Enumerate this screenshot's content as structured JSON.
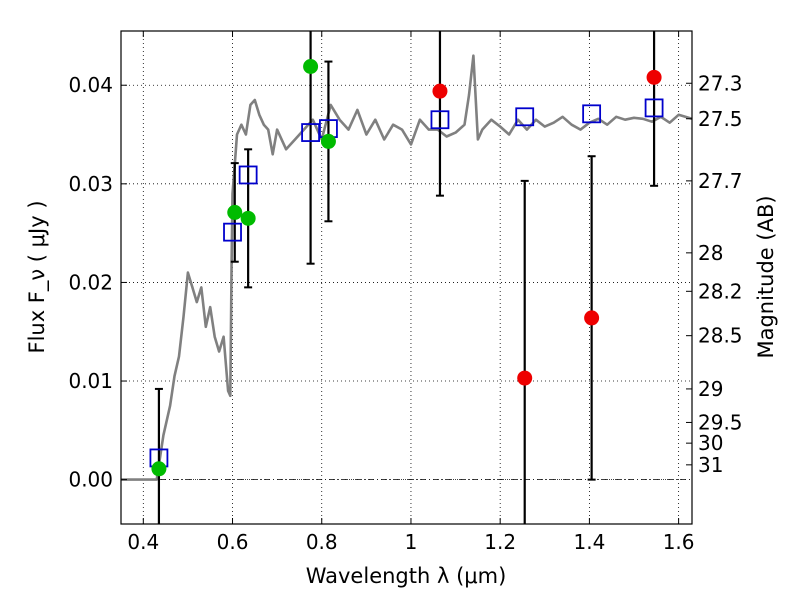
{
  "chart_data": {
    "type": "scatter",
    "xlabel": "Wavelength  λ (μm)",
    "ylabel": "Flux  F_ν  ( μJy )",
    "ylabel_right": "Magnitude (AB)",
    "xlim": [
      0.35,
      1.63
    ],
    "ylim": [
      -0.0045,
      0.0455
    ],
    "x_ticks": [
      {
        "value": 0.4,
        "label": "0.4"
      },
      {
        "value": 0.6,
        "label": "0.6"
      },
      {
        "value": 0.8,
        "label": "0.8"
      },
      {
        "value": 1.0,
        "label": "1"
      },
      {
        "value": 1.2,
        "label": "1.2"
      },
      {
        "value": 1.4,
        "label": "1.4"
      },
      {
        "value": 1.6,
        "label": "1.6"
      }
    ],
    "y_ticks": [
      {
        "value": 0.0,
        "label": "0.00"
      },
      {
        "value": 0.01,
        "label": "0.01"
      },
      {
        "value": 0.02,
        "label": "0.02"
      },
      {
        "value": 0.03,
        "label": "0.03"
      },
      {
        "value": 0.04,
        "label": "0.04"
      }
    ],
    "right_ticks": [
      {
        "flux": 0.0402,
        "label": "27.3"
      },
      {
        "flux": 0.0366,
        "label": "27.5"
      },
      {
        "flux": 0.0303,
        "label": "27.7"
      },
      {
        "flux": 0.023,
        "label": "28"
      },
      {
        "flux": 0.0191,
        "label": "28.2"
      },
      {
        "flux": 0.0146,
        "label": "28.5"
      },
      {
        "flux": 0.0092,
        "label": "29"
      },
      {
        "flux": 0.0058,
        "label": "29.5"
      },
      {
        "flux": 0.0037,
        "label": "30"
      },
      {
        "flux": 0.0015,
        "label": "31"
      }
    ],
    "grid": true,
    "colors": {
      "template": "#808080",
      "model": "#0000cc",
      "detections_green": "#00bb00",
      "detections_red": "#ee0000",
      "errorbar": "#000000"
    },
    "series": [
      {
        "kind": "line",
        "style": "template",
        "x": [
          0.35,
          0.43,
          0.445,
          0.46,
          0.47,
          0.48,
          0.49,
          0.5,
          0.51,
          0.52,
          0.53,
          0.54,
          0.55,
          0.56,
          0.57,
          0.58,
          0.59,
          0.595,
          0.598,
          0.6,
          0.605,
          0.61,
          0.615,
          0.62,
          0.63,
          0.64,
          0.65,
          0.66,
          0.67,
          0.68,
          0.69,
          0.7,
          0.72,
          0.74,
          0.76,
          0.78,
          0.8,
          0.82,
          0.84,
          0.86,
          0.88,
          0.9,
          0.92,
          0.94,
          0.96,
          0.98,
          1.0,
          1.02,
          1.04,
          1.06,
          1.08,
          1.1,
          1.12,
          1.13,
          1.14,
          1.15,
          1.16,
          1.18,
          1.2,
          1.22,
          1.24,
          1.26,
          1.28,
          1.3,
          1.32,
          1.34,
          1.36,
          1.38,
          1.4,
          1.42,
          1.44,
          1.46,
          1.48,
          1.5,
          1.52,
          1.54,
          1.56,
          1.58,
          1.6,
          1.63
        ],
        "y": [
          0.0,
          0.0,
          0.0045,
          0.0075,
          0.0105,
          0.0125,
          0.0165,
          0.021,
          0.0195,
          0.018,
          0.0195,
          0.0155,
          0.0175,
          0.0145,
          0.013,
          0.0145,
          0.009,
          0.0085,
          0.022,
          0.029,
          0.032,
          0.035,
          0.0355,
          0.036,
          0.035,
          0.038,
          0.0385,
          0.037,
          0.036,
          0.0355,
          0.033,
          0.0355,
          0.0335,
          0.0345,
          0.0355,
          0.0365,
          0.0345,
          0.038,
          0.0365,
          0.0355,
          0.0375,
          0.035,
          0.0365,
          0.0345,
          0.036,
          0.0355,
          0.034,
          0.0365,
          0.0355,
          0.0355,
          0.0348,
          0.0352,
          0.036,
          0.039,
          0.043,
          0.0345,
          0.0355,
          0.0365,
          0.0358,
          0.035,
          0.0365,
          0.0355,
          0.0365,
          0.0358,
          0.0362,
          0.0368,
          0.036,
          0.0355,
          0.0362,
          0.0366,
          0.036,
          0.0368,
          0.0365,
          0.0367,
          0.0366,
          0.0363,
          0.0368,
          0.0362,
          0.037,
          0.0366
        ]
      },
      {
        "kind": "scatter",
        "style": "model",
        "marker": "open-square",
        "x": [
          0.435,
          0.6,
          0.635,
          0.775,
          0.815,
          1.065,
          1.255,
          1.405,
          1.545
        ],
        "y": [
          0.0022,
          0.0251,
          0.0309,
          0.0352,
          0.0356,
          0.0365,
          0.0368,
          0.0371,
          0.0377
        ]
      },
      {
        "kind": "scatter",
        "style": "detections_green",
        "marker": "filled-circle",
        "x": [
          0.435,
          0.605,
          0.635,
          0.775,
          0.815
        ],
        "y": [
          0.0011,
          0.0271,
          0.0265,
          0.0419,
          0.0343
        ],
        "err": [
          0.0081,
          0.005,
          0.007,
          0.02,
          0.0081
        ]
      },
      {
        "kind": "scatter",
        "style": "detections_red",
        "marker": "filled-circle",
        "x": [
          1.065,
          1.255,
          1.405,
          1.545
        ],
        "y": [
          0.0394,
          0.0103,
          0.0164,
          0.0408
        ],
        "err": [
          0.0106,
          0.02,
          0.0164,
          0.011
        ]
      }
    ]
  }
}
